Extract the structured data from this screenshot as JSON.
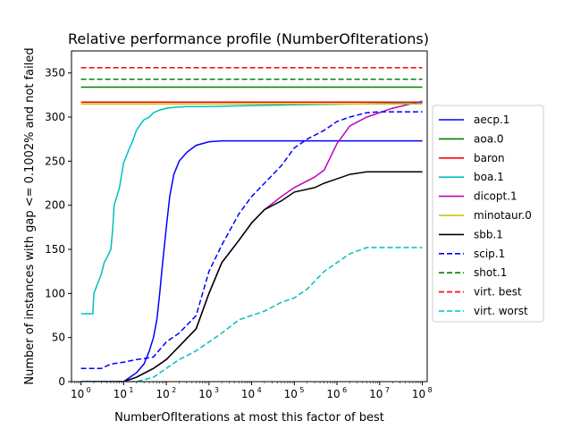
{
  "chart_data": {
    "type": "line",
    "title": "Relative performance profile (NumberOfIterations)",
    "xlabel": "NumberOfIterations at most this factor of best",
    "ylabel": "Number of instances with gap <= 0.1002% and not failed",
    "x_scale": "log",
    "xlim": [
      0.6,
      130000000
    ],
    "ylim": [
      0,
      375
    ],
    "x_ticks": [
      {
        "value": 1,
        "base": "10",
        "exp": "0"
      },
      {
        "value": 10,
        "base": "10",
        "exp": "1"
      },
      {
        "value": 100,
        "base": "10",
        "exp": "2"
      },
      {
        "value": 1000,
        "base": "10",
        "exp": "3"
      },
      {
        "value": 10000,
        "base": "10",
        "exp": "4"
      },
      {
        "value": 100000,
        "base": "10",
        "exp": "5"
      },
      {
        "value": 1000000,
        "base": "10",
        "exp": "6"
      },
      {
        "value": 10000000,
        "base": "10",
        "exp": "7"
      },
      {
        "value": 100000000,
        "base": "10",
        "exp": "8"
      }
    ],
    "y_ticks": [
      0,
      50,
      100,
      150,
      200,
      250,
      300,
      350
    ],
    "grid": false,
    "legend_position": "right",
    "series": [
      {
        "name": "aecp.1",
        "color": "#0000ff",
        "dash": "solid",
        "x": [
          1,
          10,
          14,
          20,
          30,
          40,
          50,
          60,
          70,
          80,
          100,
          120,
          150,
          200,
          300,
          500,
          1000,
          2000,
          100000000
        ],
        "y": [
          0,
          0,
          5,
          10,
          20,
          35,
          50,
          70,
          100,
          130,
          175,
          210,
          235,
          250,
          260,
          268,
          272,
          273,
          273
        ]
      },
      {
        "name": "aoa.0",
        "color": "#008000",
        "dash": "solid",
        "x": [
          1,
          100000000
        ],
        "y": [
          334,
          334
        ]
      },
      {
        "name": "baron",
        "color": "#ff0000",
        "dash": "solid",
        "x": [
          1,
          100000000
        ],
        "y": [
          317,
          317
        ]
      },
      {
        "name": "boa.1",
        "color": "#00bfbf",
        "dash": "solid",
        "x": [
          1,
          1.9,
          2,
          3,
          3.5,
          4,
          5,
          5.5,
          6,
          8,
          10,
          13,
          16,
          20,
          25,
          30,
          40,
          50,
          70,
          100,
          150,
          300,
          1000,
          100000,
          100000000
        ],
        "y": [
          77,
          77,
          100,
          122,
          135,
          140,
          150,
          170,
          200,
          220,
          248,
          262,
          272,
          285,
          292,
          297,
          300,
          305,
          308,
          310,
          311,
          312,
          312,
          314,
          316
        ]
      },
      {
        "name": "dicopt.1",
        "color": "#bf00bf",
        "dash": "solid",
        "x": [
          1,
          10,
          20,
          50,
          100,
          200,
          500,
          1000,
          2000,
          5000,
          10000,
          20000,
          50000,
          100000,
          300000,
          500000,
          1000000,
          2000000,
          5000000,
          20000000,
          100000000
        ],
        "y": [
          0,
          0,
          5,
          15,
          25,
          40,
          60,
          100,
          135,
          160,
          180,
          195,
          210,
          220,
          232,
          240,
          270,
          290,
          300,
          310,
          318
        ]
      },
      {
        "name": "minotaur.0",
        "color": "#bfbf00",
        "dash": "solid",
        "x": [
          1,
          100000000
        ],
        "y": [
          315,
          315
        ]
      },
      {
        "name": "sbb.1",
        "color": "#000000",
        "dash": "solid",
        "x": [
          1,
          10,
          20,
          50,
          100,
          200,
          500,
          1000,
          2000,
          5000,
          10000,
          20000,
          50000,
          100000,
          300000,
          500000,
          1000000,
          2000000,
          5000000,
          100000000
        ],
        "y": [
          0,
          0,
          5,
          15,
          25,
          40,
          60,
          100,
          135,
          160,
          180,
          195,
          205,
          215,
          220,
          225,
          230,
          235,
          238,
          238
        ]
      },
      {
        "name": "scip.1",
        "color": "#0000ff",
        "dash": "dashed",
        "x": [
          1,
          3,
          5,
          10,
          20,
          30,
          50,
          100,
          200,
          500,
          1000,
          2000,
          5000,
          10000,
          20000,
          50000,
          100000,
          200000,
          500000,
          1000000,
          2000000,
          5000000,
          10000000,
          20000000,
          100000000
        ],
        "y": [
          15,
          15,
          20,
          22,
          25,
          26,
          28,
          45,
          55,
          75,
          125,
          155,
          190,
          210,
          225,
          245,
          265,
          275,
          285,
          295,
          300,
          305,
          306,
          306,
          306
        ]
      },
      {
        "name": "shot.1",
        "color": "#008000",
        "dash": "dashed",
        "x": [
          1,
          100000000
        ],
        "y": [
          343,
          343
        ]
      },
      {
        "name": "virt. best",
        "color": "#ff0000",
        "dash": "dashed",
        "x": [
          1,
          100000000
        ],
        "y": [
          356,
          356
        ]
      },
      {
        "name": "virt. worst",
        "color": "#00bfbf",
        "dash": "dashed",
        "x": [
          1,
          20,
          50,
          100,
          200,
          500,
          1000,
          2000,
          5000,
          10000,
          20000,
          50000,
          100000,
          200000,
          500000,
          1000000,
          2000000,
          5000000,
          100000000
        ],
        "y": [
          0,
          0,
          5,
          15,
          25,
          35,
          45,
          55,
          70,
          75,
          80,
          90,
          95,
          105,
          125,
          135,
          145,
          152,
          152
        ]
      }
    ]
  }
}
